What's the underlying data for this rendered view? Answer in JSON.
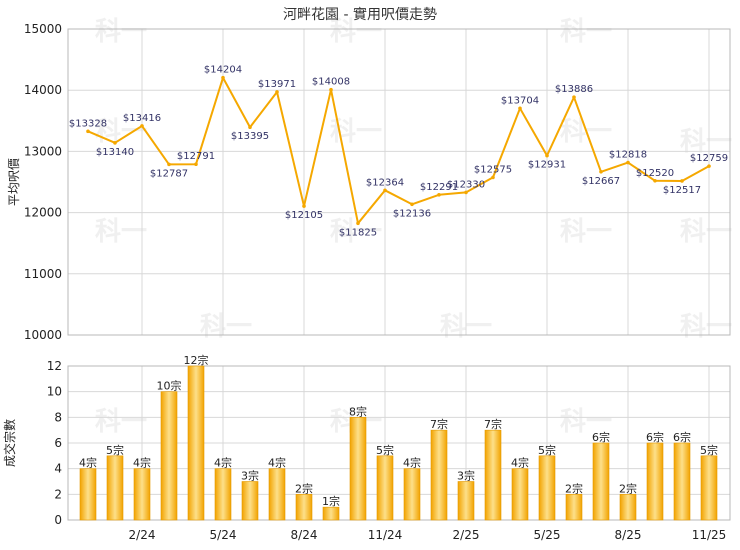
{
  "chart_data": [
    {
      "type": "line",
      "title": "河畔花園 - 實用呎價走勢",
      "ylabel": "平均呎價",
      "ylim": [
        10000,
        15000
      ],
      "yticks": [
        10000,
        11000,
        12000,
        13000,
        14000,
        15000
      ],
      "grid": true,
      "series": [
        {
          "color": "#f5a800",
          "values": [
            13328,
            13140,
            13416,
            12787,
            12791,
            14204,
            13395,
            13971,
            12105,
            14008,
            11825,
            12364,
            12136,
            12291,
            12330,
            12575,
            13704,
            12931,
            13886,
            12667,
            12818,
            12520,
            12517,
            12759
          ],
          "labels": [
            "$13328",
            "$13140",
            "$13416",
            "$12787",
            "$12791",
            "$14204",
            "$13395",
            "$13971",
            "$12105",
            "$14008",
            "$11825",
            "$12364",
            "$12136",
            "$12291",
            "$12330",
            "$12575",
            "$13704",
            "$12931",
            "$13886",
            "$12667",
            "$12818",
            "$12520",
            "$12517",
            "$12759"
          ]
        }
      ]
    },
    {
      "type": "bar",
      "ylabel": "成交宗數",
      "ylim": [
        0,
        12
      ],
      "yticks": [
        0,
        2,
        4,
        6,
        8,
        10,
        12
      ],
      "grid": true,
      "xticks": [
        "2/24",
        "5/24",
        "8/24",
        "11/24",
        "2/25",
        "5/25",
        "8/25",
        "11/25"
      ],
      "series": [
        {
          "color": "#f5a800",
          "values": [
            4,
            5,
            4,
            10,
            12,
            4,
            3,
            4,
            2,
            1,
            8,
            5,
            4,
            7,
            3,
            7,
            4,
            5,
            2,
            6,
            2,
            6,
            6,
            5
          ],
          "labels": [
            "4宗",
            "5宗",
            "4宗",
            "10宗",
            "12宗",
            "4宗",
            "3宗",
            "4宗",
            "2宗",
            "1宗",
            "8宗",
            "5宗",
            "4宗",
            "7宗",
            "3宗",
            "7宗",
            "4宗",
            "5宗",
            "2宗",
            "6宗",
            "2宗",
            "6宗",
            "6宗",
            "5宗"
          ]
        }
      ]
    }
  ],
  "watermark": "科一",
  "colors": {
    "accent": "#f5a800",
    "bar_light": "#fde08a",
    "grid": "#d8d8d8",
    "axis": "#999999"
  }
}
